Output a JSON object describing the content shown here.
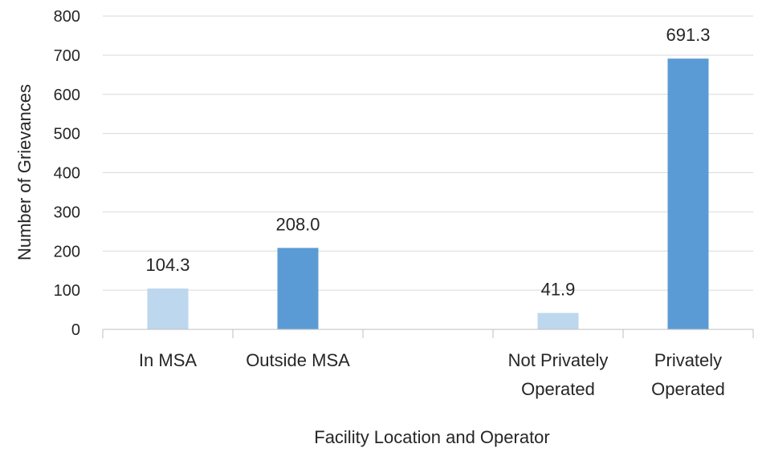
{
  "chart_data": {
    "type": "bar",
    "title": "",
    "xlabel": "Facility Location and Operator",
    "ylabel": "Number of Grievances",
    "ylim": [
      0,
      800
    ],
    "yticks": [
      0,
      100,
      200,
      300,
      400,
      500,
      600,
      700,
      800
    ],
    "grid": true,
    "legend": "none",
    "categories": [
      [
        "In MSA"
      ],
      [
        "Outside MSA"
      ],
      [],
      [
        "Not Privately",
        "Operated"
      ],
      [
        "Privately",
        "Operated"
      ]
    ],
    "values": [
      104.3,
      208.0,
      null,
      41.9,
      691.3
    ],
    "data_labels": [
      "104.3",
      "208.0",
      "",
      "41.9",
      "691.3"
    ],
    "colors": [
      "#bdd7ee",
      "#5b9bd5",
      "",
      "#bdd7ee",
      "#5b9bd5"
    ],
    "gridline_color": "#d9d9d9",
    "axis_color": "#bfbfbf"
  }
}
